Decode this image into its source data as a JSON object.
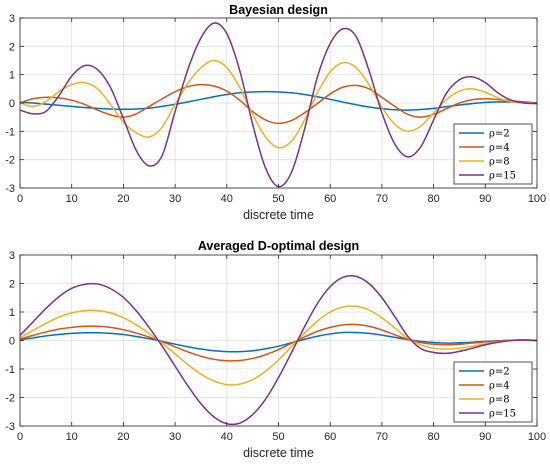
{
  "chart_data": [
    {
      "type": "line",
      "title": "Bayesian design",
      "xlabel": "discrete time",
      "ylabel": "",
      "xlim": [
        0,
        100
      ],
      "ylim": [
        -3,
        3
      ],
      "xticks": [
        0,
        10,
        20,
        30,
        40,
        50,
        60,
        70,
        80,
        90,
        100
      ],
      "yticks": [
        -3,
        -2,
        -1,
        0,
        1,
        2,
        3
      ],
      "grid": true,
      "legend_position": "bottom-right",
      "x": [
        0,
        2.5,
        5,
        7.5,
        10,
        12.5,
        15,
        17.5,
        20,
        22.5,
        25,
        27.5,
        30,
        32.5,
        35,
        37.5,
        40,
        42.5,
        45,
        47.5,
        50,
        52.5,
        55,
        57.5,
        60,
        62.5,
        65,
        67.5,
        70,
        72.5,
        75,
        77.5,
        80,
        82.5,
        85,
        87.5,
        90,
        92.5,
        95,
        97.5,
        100
      ],
      "series": [
        {
          "name": "ρ=2",
          "color": "#0072BD",
          "values": [
            0.02,
            0.0,
            -0.04,
            -0.08,
            -0.12,
            -0.16,
            -0.19,
            -0.21,
            -0.22,
            -0.21,
            -0.18,
            -0.12,
            -0.05,
            0.04,
            0.13,
            0.22,
            0.3,
            0.36,
            0.39,
            0.4,
            0.39,
            0.36,
            0.3,
            0.22,
            0.13,
            0.03,
            -0.06,
            -0.14,
            -0.2,
            -0.24,
            -0.25,
            -0.23,
            -0.19,
            -0.13,
            -0.07,
            -0.02,
            0.02,
            0.04,
            0.04,
            0.03,
            0.0
          ]
        },
        {
          "name": "ρ=4",
          "color": "#D95319",
          "values": [
            0.0,
            0.15,
            0.2,
            0.18,
            0.1,
            -0.05,
            -0.25,
            -0.42,
            -0.5,
            -0.38,
            -0.12,
            0.15,
            0.4,
            0.58,
            0.65,
            0.6,
            0.42,
            0.1,
            -0.3,
            -0.6,
            -0.72,
            -0.62,
            -0.35,
            -0.02,
            0.32,
            0.56,
            0.62,
            0.5,
            0.2,
            -0.12,
            -0.4,
            -0.5,
            -0.4,
            -0.2,
            0.0,
            0.12,
            0.15,
            0.12,
            0.08,
            0.04,
            0.0
          ]
        },
        {
          "name": "ρ=8",
          "color": "#EDB120",
          "values": [
            0.0,
            -0.12,
            0.05,
            0.4,
            0.65,
            0.72,
            0.5,
            -0.05,
            -0.68,
            -1.05,
            -1.2,
            -0.85,
            -0.05,
            0.7,
            1.25,
            1.5,
            1.25,
            0.55,
            -0.4,
            -1.2,
            -1.58,
            -1.35,
            -0.62,
            0.35,
            1.1,
            1.42,
            1.25,
            0.65,
            -0.15,
            -0.75,
            -1.0,
            -0.82,
            -0.35,
            0.12,
            0.42,
            0.5,
            0.38,
            0.18,
            0.05,
            0.0,
            0.0
          ]
        },
        {
          "name": "ρ=15",
          "color": "#7E2F8E",
          "values": [
            -0.25,
            -0.38,
            -0.3,
            0.25,
            0.95,
            1.32,
            1.18,
            0.55,
            -0.55,
            -1.68,
            -2.22,
            -1.85,
            -0.3,
            1.2,
            2.3,
            2.82,
            2.45,
            1.15,
            -0.75,
            -2.3,
            -2.95,
            -2.45,
            -0.95,
            0.9,
            2.1,
            2.62,
            2.35,
            1.15,
            -0.35,
            -1.45,
            -1.9,
            -1.55,
            -0.6,
            0.35,
            0.82,
            0.92,
            0.72,
            0.35,
            0.1,
            0.0,
            -0.02
          ]
        }
      ]
    },
    {
      "type": "line",
      "title": "Averaged D-optimal design",
      "xlabel": "discrete time",
      "ylabel": "",
      "xlim": [
        0,
        100
      ],
      "ylim": [
        -3,
        3
      ],
      "xticks": [
        0,
        10,
        20,
        30,
        40,
        50,
        60,
        70,
        80,
        90,
        100
      ],
      "yticks": [
        -3,
        -2,
        -1,
        0,
        1,
        2,
        3
      ],
      "grid": true,
      "legend_position": "bottom-right",
      "x": [
        0,
        2.5,
        5,
        7.5,
        10,
        12.5,
        15,
        17.5,
        20,
        22.5,
        25,
        27.5,
        30,
        32.5,
        35,
        37.5,
        40,
        42.5,
        45,
        47.5,
        50,
        52.5,
        55,
        57.5,
        60,
        62.5,
        65,
        67.5,
        70,
        72.5,
        75,
        77.5,
        80,
        82.5,
        85,
        87.5,
        90,
        92.5,
        95,
        97.5,
        100
      ],
      "series": [
        {
          "name": "ρ=2",
          "color": "#0072BD",
          "values": [
            0.02,
            0.09,
            0.16,
            0.21,
            0.25,
            0.27,
            0.27,
            0.25,
            0.21,
            0.14,
            0.06,
            -0.03,
            -0.13,
            -0.22,
            -0.3,
            -0.36,
            -0.39,
            -0.39,
            -0.36,
            -0.29,
            -0.2,
            -0.08,
            0.04,
            0.15,
            0.23,
            0.28,
            0.28,
            0.25,
            0.19,
            0.11,
            0.03,
            -0.03,
            -0.07,
            -0.09,
            -0.08,
            -0.06,
            -0.03,
            -0.01,
            0.01,
            0.01,
            0.0
          ]
        },
        {
          "name": "ρ=4",
          "color": "#D95319",
          "values": [
            0.05,
            0.18,
            0.3,
            0.4,
            0.46,
            0.5,
            0.5,
            0.46,
            0.38,
            0.26,
            0.12,
            -0.04,
            -0.22,
            -0.4,
            -0.55,
            -0.66,
            -0.71,
            -0.7,
            -0.63,
            -0.5,
            -0.32,
            -0.1,
            0.12,
            0.32,
            0.46,
            0.55,
            0.56,
            0.5,
            0.37,
            0.2,
            0.04,
            -0.07,
            -0.13,
            -0.15,
            -0.13,
            -0.09,
            -0.05,
            -0.02,
            0.0,
            0.01,
            0.0
          ]
        },
        {
          "name": "ρ=8",
          "color": "#EDB120",
          "values": [
            0.1,
            0.35,
            0.6,
            0.82,
            0.97,
            1.05,
            1.05,
            0.97,
            0.8,
            0.55,
            0.24,
            -0.1,
            -0.47,
            -0.85,
            -1.18,
            -1.42,
            -1.55,
            -1.53,
            -1.37,
            -1.08,
            -0.68,
            -0.22,
            0.25,
            0.68,
            1.0,
            1.18,
            1.2,
            1.07,
            0.8,
            0.44,
            0.08,
            -0.15,
            -0.27,
            -0.3,
            -0.27,
            -0.2,
            -0.12,
            -0.05,
            0.0,
            0.02,
            0.0
          ]
        },
        {
          "name": "ρ=15",
          "color": "#7E2F8E",
          "values": [
            0.18,
            0.65,
            1.12,
            1.53,
            1.83,
            1.97,
            1.98,
            1.82,
            1.51,
            1.04,
            0.45,
            -0.2,
            -0.9,
            -1.6,
            -2.22,
            -2.68,
            -2.92,
            -2.9,
            -2.6,
            -2.06,
            -1.3,
            -0.43,
            0.47,
            1.29,
            1.89,
            2.22,
            2.25,
            2.0,
            1.5,
            0.84,
            0.15,
            -0.28,
            -0.42,
            -0.45,
            -0.38,
            -0.27,
            -0.15,
            -0.06,
            0.0,
            0.02,
            0.0
          ]
        }
      ]
    }
  ]
}
